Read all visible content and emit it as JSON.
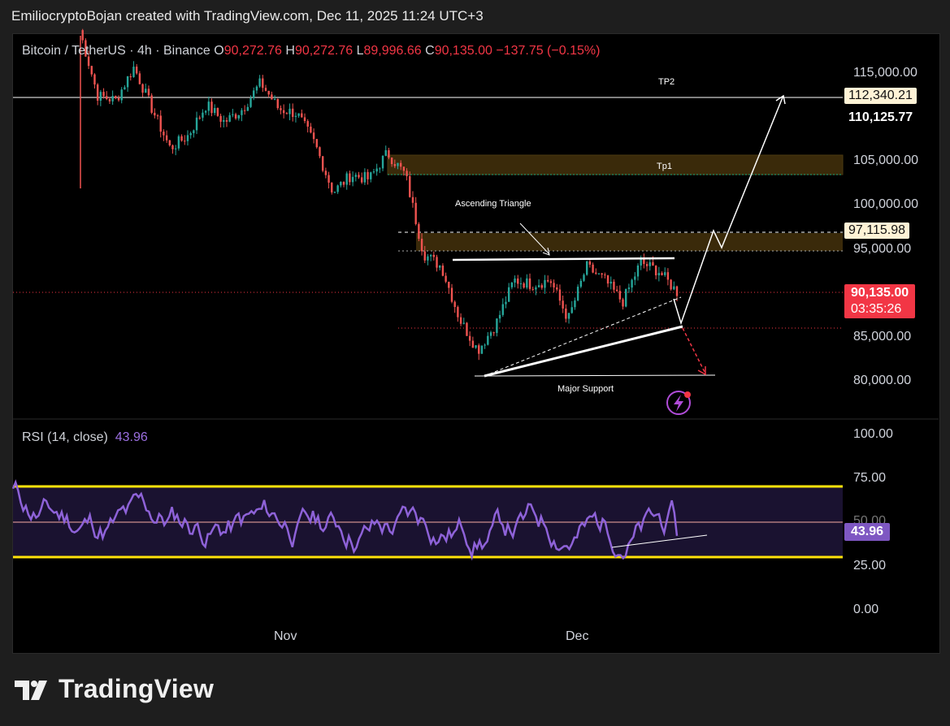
{
  "header": {
    "title": "EmiliocryptoBojan created with TradingView.com, Dec 11, 2025 11:24 UTC+3"
  },
  "legend": {
    "symbol": "Bitcoin / TetherUS · 4h · Binance",
    "o_label": "O",
    "o_value": "90,272.76",
    "h_label": "H",
    "h_value": "90,272.76",
    "l_label": "L",
    "l_value": "89,996.66",
    "c_label": "C",
    "c_value": "90,135.00",
    "change": "−137.75 (−0.15%)"
  },
  "price_axis": {
    "ticks": [
      "115,000.00",
      "105,000.00",
      "100,000.00",
      "95,000.00",
      "85,000.00",
      "80,000.00"
    ],
    "tag_112": "112,340.21",
    "tag_110": "110,125.77",
    "tag_97": "97,115.98",
    "last_price": "90,135.00",
    "countdown": "03:35:26"
  },
  "rsi": {
    "label": "RSI (14, close)",
    "value": "43.96",
    "ticks": [
      "100.00",
      "75.00",
      "50.00",
      "25.00",
      "0.00"
    ],
    "tag": "43.96"
  },
  "time_axis": {
    "ticks": [
      "Nov",
      "Dec"
    ]
  },
  "annotations": {
    "tp2": "TP2",
    "tp1": "Tp1",
    "triangle": "Ascending Triangle",
    "support": "Major Support"
  },
  "brand": {
    "name": "TradingView"
  },
  "chart_data": {
    "type": "candlestick",
    "title": "Bitcoin / TetherUS · 4h · Binance",
    "ylim": [
      78000,
      119000
    ],
    "close_path": [
      [
        "Oct 06",
        120000
      ],
      [
        "Oct 08",
        112500
      ],
      [
        "Oct 10",
        112000
      ],
      [
        "Oct 12",
        115800
      ],
      [
        "Oct 15",
        111000
      ],
      [
        "Oct 17",
        106500
      ],
      [
        "Oct 20",
        108000
      ],
      [
        "Oct 22",
        111500
      ],
      [
        "Oct 24",
        109500
      ],
      [
        "Oct 26",
        111000
      ],
      [
        "Oct 28",
        114000
      ],
      [
        "Oct 30",
        111000
      ],
      [
        "Nov 01",
        110500
      ],
      [
        "Nov 03",
        107000
      ],
      [
        "Nov 05",
        101500
      ],
      [
        "Nov 07",
        103500
      ],
      [
        "Nov 09",
        103000
      ],
      [
        "Nov 11",
        106000
      ],
      [
        "Nov 13",
        103500
      ],
      [
        "Nov 15",
        94500
      ],
      [
        "Nov 18",
        93000
      ],
      [
        "Nov 20",
        87000
      ],
      [
        "Nov 22",
        83500
      ],
      [
        "Nov 24",
        86500
      ],
      [
        "Nov 26",
        91500
      ],
      [
        "Nov 28",
        91000
      ],
      [
        "Nov 30",
        91500
      ],
      [
        "Dec 02",
        87000
      ],
      [
        "Dec 03",
        93000
      ],
      [
        "Dec 05",
        91500
      ],
      [
        "Dec 07",
        89000
      ],
      [
        "Dec 09",
        93500
      ],
      [
        "Dec 10",
        92500
      ],
      [
        "Dec 11",
        90135
      ]
    ],
    "levels": {
      "tp2": 112340.21,
      "tp1_zone": [
        103500,
        105800
      ],
      "resistance_zone": [
        94800,
        96500
      ],
      "level_97": 97115.98,
      "level_86": 86000,
      "major_support": 80500
    },
    "rsi": {
      "overbought": 70,
      "oversold": 30,
      "mid": 50,
      "last": 43.96
    }
  }
}
